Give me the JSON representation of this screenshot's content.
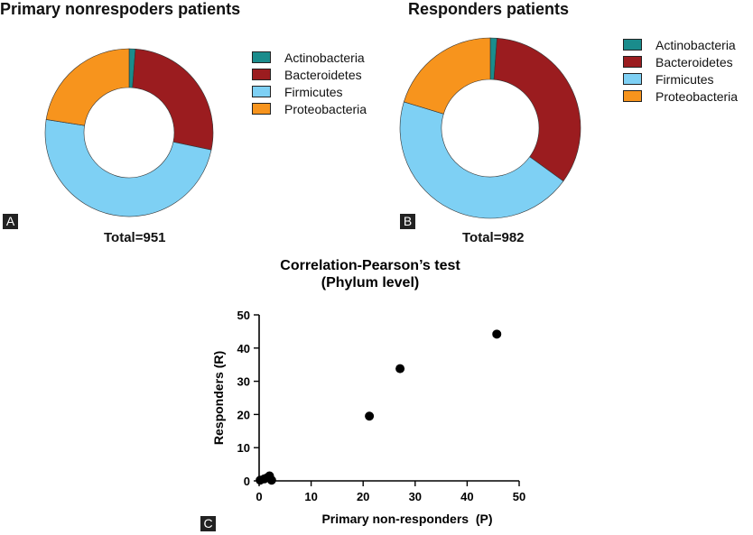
{
  "panels": {
    "a": {
      "tag": "A",
      "title": "Primary nonrespoders patients",
      "total_label": "Total=951"
    },
    "b": {
      "tag": "B",
      "title": "Responders patients",
      "total_label": "Total=982"
    },
    "c": {
      "tag": "C",
      "title_line1": "Correlation-Pearson’s test",
      "title_line2": "(Phylum level)"
    }
  },
  "chart_data": [
    {
      "type": "pie",
      "donut": true,
      "title": "Primary nonrespoders patients",
      "total": "Total=951",
      "labels": [
        "Actinobacteria",
        "Bacteroidetes",
        "Firmicutes",
        "Proteobacteria"
      ],
      "values": [
        1.2,
        27.1,
        49.2,
        22.5
      ],
      "colors": [
        "#1a8c8c",
        "#9b1c1f",
        "#7ed0f4",
        "#f7941d"
      ],
      "legend": "right"
    },
    {
      "type": "pie",
      "donut": true,
      "title": "Responders patients",
      "total": "Total=982",
      "labels": [
        "Actinobacteria",
        "Bacteroidetes",
        "Firmicutes",
        "Proteobacteria"
      ],
      "values": [
        1.2,
        33.8,
        44.7,
        20.3
      ],
      "colors": [
        "#1a8c8c",
        "#9b1c1f",
        "#7ed0f4",
        "#f7941d"
      ],
      "legend": "right"
    },
    {
      "type": "scatter",
      "title": "Correlation-Pearson’s test (Phylum level)",
      "xlabel": "Primary non-responders  (P)",
      "ylabel": "Responders (R)",
      "xlim": [
        0,
        50
      ],
      "ylim": [
        0,
        50
      ],
      "xticks": [
        "0",
        "10",
        "20",
        "30",
        "40",
        "50"
      ],
      "yticks": [
        "0",
        "10",
        "20",
        "30",
        "40",
        "50"
      ],
      "x": [
        0.2,
        1.0,
        1.6,
        2.0,
        2.4,
        21.2,
        27.1,
        45.7
      ],
      "y": [
        0.2,
        0.6,
        1.0,
        1.5,
        0.2,
        19.5,
        33.8,
        44.2
      ],
      "color": "#000000"
    }
  ]
}
